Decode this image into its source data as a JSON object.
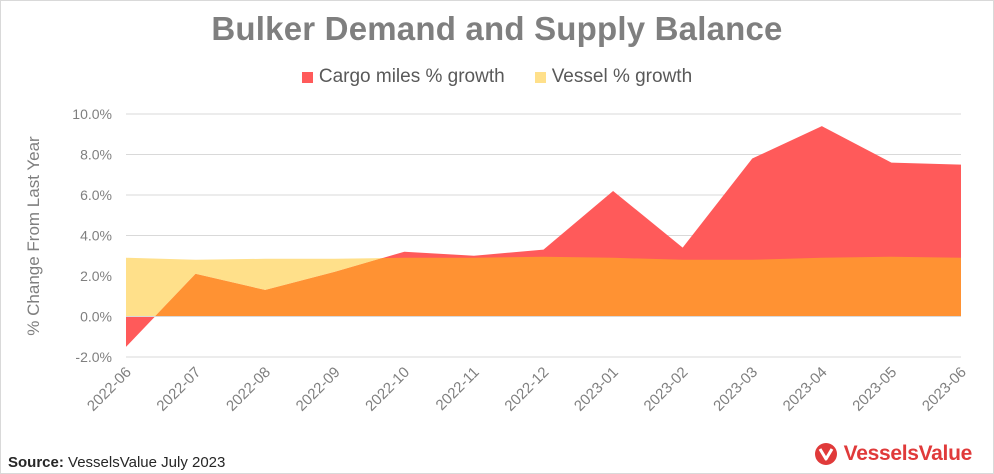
{
  "chart_data": {
    "type": "area",
    "title": "Bulker Demand and Supply Balance",
    "ylabel": "% Change From Last Year",
    "xlabel": "",
    "ylim": [
      -2.0,
      10.0
    ],
    "yticks": [
      "-2.0%",
      "0.0%",
      "2.0%",
      "4.0%",
      "6.0%",
      "8.0%",
      "10.0%"
    ],
    "ytick_values": [
      -2,
      0,
      2,
      4,
      6,
      8,
      10
    ],
    "categories": [
      "2022-06",
      "2022-07",
      "2022-08",
      "2022-09",
      "2022-10",
      "2022-11",
      "2022-12",
      "2023-01",
      "2023-02",
      "2023-03",
      "2023-04",
      "2023-05",
      "2023-06"
    ],
    "series": [
      {
        "name": "Cargo miles % growth",
        "color": "#ff5a5a",
        "values": [
          -1.5,
          2.1,
          1.3,
          2.2,
          3.2,
          3.0,
          3.3,
          6.2,
          3.4,
          7.8,
          9.4,
          7.6,
          7.5
        ]
      },
      {
        "name": "Vessel % growth",
        "color": "#ffe08a",
        "values": [
          2.9,
          2.8,
          2.85,
          2.85,
          2.9,
          2.9,
          2.95,
          2.9,
          2.8,
          2.8,
          2.9,
          2.95,
          2.9
        ]
      }
    ],
    "overlap_color": "#ff9233",
    "legend_position": "top-center",
    "grid": true
  },
  "footer": {
    "source_label": "Source:",
    "source_text": "VesselsValue July 2023",
    "brand": "VesselsValue"
  }
}
